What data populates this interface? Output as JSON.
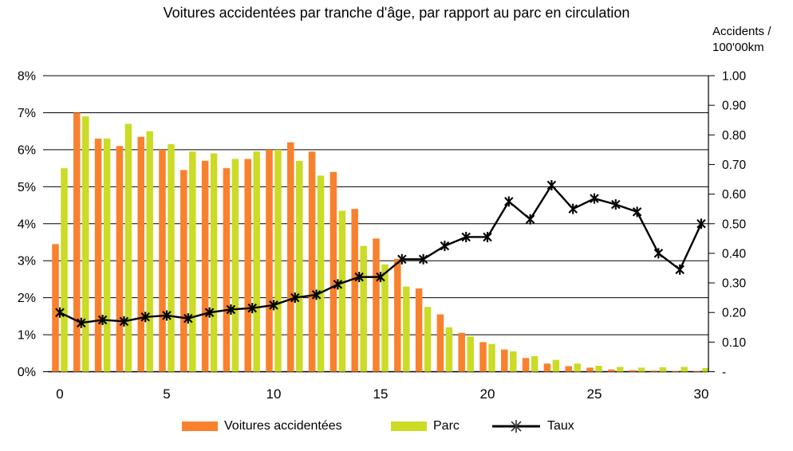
{
  "chart_data": {
    "type": "bar+line",
    "title": "Voitures accidentées par tranche d'âge, par rapport au parc en circulation",
    "x": [
      0,
      1,
      2,
      3,
      4,
      5,
      6,
      7,
      8,
      9,
      10,
      11,
      12,
      13,
      14,
      15,
      16,
      17,
      18,
      19,
      20,
      21,
      22,
      23,
      24,
      25,
      26,
      27,
      28,
      29,
      30
    ],
    "series": [
      {
        "name": "Voitures accidentées",
        "type": "bar",
        "axis": "left",
        "color": "#F9812D",
        "values": [
          3.45,
          7.0,
          6.3,
          6.1,
          6.35,
          6.0,
          5.45,
          5.7,
          5.5,
          5.75,
          6.0,
          6.2,
          5.95,
          5.4,
          4.4,
          3.6,
          3.05,
          2.25,
          1.55,
          1.05,
          0.8,
          0.6,
          0.37,
          0.22,
          0.15,
          0.11,
          0.06,
          0.04,
          0.03,
          0.02,
          0.02
        ]
      },
      {
        "name": "Parc",
        "type": "bar",
        "axis": "left",
        "color": "#CBDB26",
        "values": [
          5.5,
          6.9,
          6.3,
          6.7,
          6.5,
          6.15,
          5.95,
          5.9,
          5.75,
          5.95,
          6.0,
          5.7,
          5.3,
          4.35,
          3.4,
          2.9,
          2.3,
          1.75,
          1.2,
          0.95,
          0.75,
          0.55,
          0.42,
          0.32,
          0.22,
          0.16,
          0.13,
          0.11,
          0.12,
          0.13,
          0.1
        ]
      },
      {
        "name": "Taux",
        "type": "line",
        "axis": "right",
        "color": "#000000",
        "marker": "star",
        "values": [
          0.2,
          0.165,
          0.175,
          0.17,
          0.185,
          0.19,
          0.18,
          0.2,
          0.21,
          0.215,
          0.225,
          0.25,
          0.26,
          0.295,
          0.32,
          0.32,
          0.38,
          0.38,
          0.425,
          0.455,
          0.455,
          0.575,
          0.515,
          0.63,
          0.55,
          0.585,
          0.565,
          0.54,
          0.4,
          0.345,
          0.5
        ]
      }
    ],
    "left_axis": {
      "min": 0,
      "max": 8,
      "tick_step": 1,
      "tick_values": [
        0,
        1,
        2,
        3,
        4,
        5,
        6,
        7,
        8
      ],
      "labels": [
        "0%",
        "1%",
        "2%",
        "3%",
        "4%",
        "5%",
        "6%",
        "7%",
        "8%"
      ]
    },
    "right_axis": {
      "min": 0,
      "max": 1,
      "tick_step": 0.1,
      "tick_values": [
        0,
        0.1,
        0.2,
        0.3,
        0.4,
        0.5,
        0.6,
        0.7,
        0.8,
        0.9,
        1.0
      ],
      "labels": [
        "-",
        "0.10",
        "0.20",
        "0.30",
        "0.40",
        "0.50",
        "0.60",
        "0.70",
        "0.80",
        "0.90",
        "1.00"
      ],
      "title": "Accidents /\n100'00km"
    },
    "x_axis": {
      "tick_values": [
        0,
        5,
        10,
        15,
        20,
        25,
        30
      ],
      "tick_labels": [
        "0",
        "5",
        "10",
        "15",
        "20",
        "25",
        "30"
      ]
    },
    "grid": "horizontal",
    "legend_position": "bottom"
  }
}
